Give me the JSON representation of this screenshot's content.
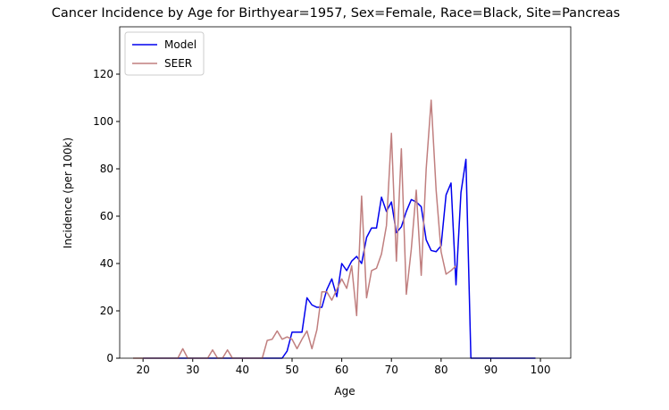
{
  "chart_data": {
    "type": "line",
    "title": "Cancer Incidence by Age for Birthyear=1957, Sex=Female, Race=Black, Site=Pancreas",
    "xlabel": "Age",
    "ylabel": "Incidence (per 100k)",
    "xlim": [
      15.3,
      106.1
    ],
    "ylim": [
      0,
      140
    ],
    "xticks": [
      20,
      30,
      40,
      50,
      60,
      70,
      80,
      90,
      100
    ],
    "yticks": [
      0,
      20,
      40,
      60,
      80,
      100,
      120
    ],
    "legend": "upper left",
    "series": [
      {
        "name": "Model",
        "color": "#0000ee",
        "x": [
          20,
          21,
          22,
          23,
          24,
          25,
          26,
          27,
          28,
          29,
          30,
          31,
          32,
          33,
          34,
          35,
          36,
          37,
          38,
          39,
          40,
          41,
          42,
          43,
          44,
          45,
          46,
          47,
          48,
          49,
          50,
          51,
          52,
          53,
          54,
          55,
          56,
          57,
          58,
          59,
          60,
          61,
          62,
          63,
          64,
          65,
          66,
          67,
          68,
          69,
          70,
          71,
          72,
          73,
          74,
          75,
          76,
          77,
          78,
          79,
          80,
          81,
          82,
          83,
          84,
          85,
          86,
          87,
          88,
          89,
          90,
          91,
          92,
          93,
          94,
          95,
          96,
          97,
          98,
          99
        ],
        "values": [
          0,
          0,
          0,
          0,
          0,
          0,
          0,
          0,
          0,
          0,
          0,
          0,
          0,
          0,
          0,
          0,
          0,
          0,
          0,
          0,
          0,
          0,
          0,
          0,
          0,
          0,
          0,
          0,
          0,
          3,
          11,
          11,
          11,
          25.5,
          22.5,
          21.5,
          21.5,
          29,
          33.5,
          26,
          40,
          37,
          41,
          43,
          40,
          51,
          55,
          55,
          68,
          62,
          66,
          53,
          55.5,
          62,
          67,
          66,
          64,
          50,
          45.5,
          45,
          47.5,
          69,
          74,
          31,
          70,
          84,
          0,
          0,
          0,
          0,
          0,
          0,
          0,
          0,
          0,
          0,
          0,
          0,
          0,
          0
        ]
      },
      {
        "name": "SEER",
        "color": "#c07f7f",
        "x": [
          18,
          19,
          20,
          21,
          22,
          23,
          24,
          25,
          26,
          27,
          28,
          29,
          30,
          31,
          32,
          33,
          34,
          35,
          36,
          37,
          38,
          39,
          40,
          41,
          42,
          43,
          44,
          45,
          46,
          47,
          48,
          49,
          50,
          51,
          52,
          53,
          54,
          55,
          56,
          57,
          58,
          59,
          60,
          61,
          62,
          63,
          64,
          65,
          66,
          67,
          68,
          69,
          70,
          71,
          72,
          73,
          74,
          75,
          76,
          77,
          78,
          79,
          80,
          81,
          82,
          83
        ],
        "values": [
          0,
          0,
          0,
          0,
          0,
          0,
          0,
          0,
          0,
          0,
          4,
          0,
          0,
          0,
          0,
          0,
          3.5,
          0,
          0,
          3.5,
          0,
          0,
          0,
          0,
          0,
          0,
          0,
          7.5,
          8,
          11.5,
          8,
          9,
          8,
          4,
          8,
          11.5,
          4,
          12,
          28,
          28,
          24.5,
          29,
          33.5,
          29.5,
          39,
          18,
          68.5,
          25.5,
          37,
          38,
          44,
          56,
          95,
          41,
          88.5,
          27,
          46,
          71,
          35,
          80,
          109,
          71,
          45,
          35.5,
          37,
          39
        ]
      }
    ]
  }
}
